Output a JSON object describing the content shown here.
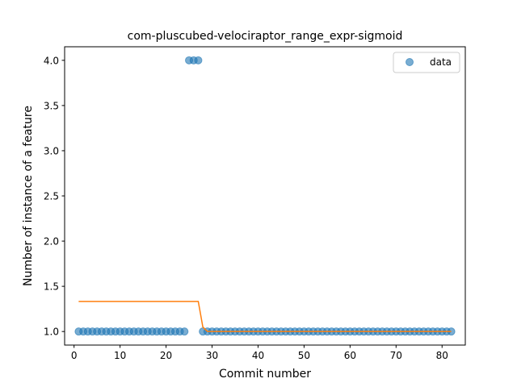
{
  "chart_data": {
    "type": "scatter",
    "title": "com-pluscubed-velociraptor_range_expr-sigmoid",
    "xlabel": "Commit number",
    "ylabel": "Number of instance of a feature",
    "xlim": [
      -2.05,
      85.05
    ],
    "ylim": [
      0.85,
      4.15
    ],
    "xticks": [
      0,
      10,
      20,
      30,
      40,
      50,
      60,
      70,
      80
    ],
    "yticks": [
      1.0,
      1.5,
      2.0,
      2.5,
      3.0,
      3.5,
      4.0
    ],
    "ytick_labels": [
      "1.0",
      "1.5",
      "2.0",
      "2.5",
      "3.0",
      "3.5",
      "4.0"
    ],
    "grid": false,
    "legend": {
      "position": "top-right",
      "entries": [
        "data"
      ]
    },
    "series": [
      {
        "name": "data",
        "kind": "scatter",
        "color": "#1f77b4",
        "x": [
          1,
          2,
          3,
          4,
          5,
          6,
          7,
          8,
          9,
          10,
          11,
          12,
          13,
          14,
          15,
          16,
          17,
          18,
          19,
          20,
          21,
          22,
          23,
          24,
          25,
          26,
          27,
          28,
          29,
          30,
          31,
          32,
          33,
          34,
          35,
          36,
          37,
          38,
          39,
          40,
          41,
          42,
          43,
          44,
          45,
          46,
          47,
          48,
          49,
          50,
          51,
          52,
          53,
          54,
          55,
          56,
          57,
          58,
          59,
          60,
          61,
          62,
          63,
          64,
          65,
          66,
          67,
          68,
          69,
          70,
          71,
          72,
          73,
          74,
          75,
          76,
          77,
          78,
          79,
          80,
          81,
          82
        ],
        "y": [
          1,
          1,
          1,
          1,
          1,
          1,
          1,
          1,
          1,
          1,
          1,
          1,
          1,
          1,
          1,
          1,
          1,
          1,
          1,
          1,
          1,
          1,
          1,
          1,
          4,
          4,
          4,
          1,
          1,
          1,
          1,
          1,
          1,
          1,
          1,
          1,
          1,
          1,
          1,
          1,
          1,
          1,
          1,
          1,
          1,
          1,
          1,
          1,
          1,
          1,
          1,
          1,
          1,
          1,
          1,
          1,
          1,
          1,
          1,
          1,
          1,
          1,
          1,
          1,
          1,
          1,
          1,
          1,
          1,
          1,
          1,
          1,
          1,
          1,
          1,
          1,
          1,
          1,
          1,
          1,
          1,
          1
        ]
      },
      {
        "kind": "line",
        "color": "#ff7f0e",
        "x": [
          1,
          27,
          28,
          29,
          82
        ],
        "y": [
          1.333,
          1.333,
          1.05,
          1.0,
          1.0
        ]
      }
    ]
  }
}
